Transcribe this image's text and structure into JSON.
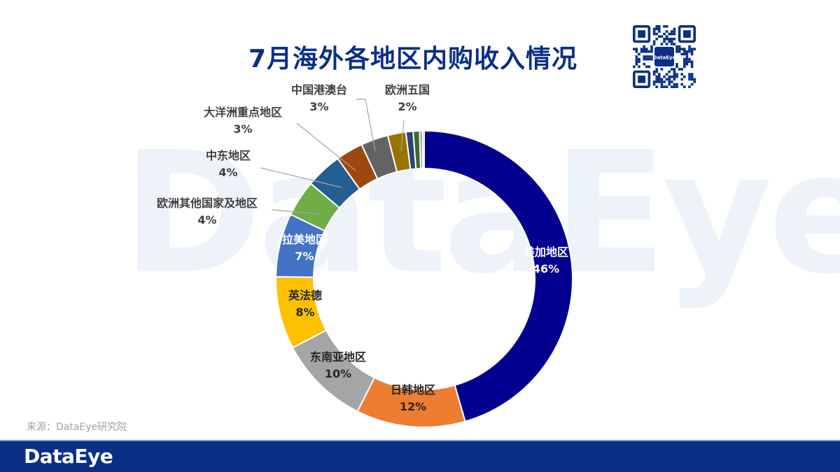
{
  "header": {
    "title": "7月海外各地区内购收入情况"
  },
  "watermark": "DataEye",
  "qr": {
    "label": "DataEye"
  },
  "source": "来源：DataEye研究院",
  "footer": {
    "brand": "DataEye"
  },
  "colors": {
    "title": "#0c2f86",
    "footer": "#0c2f86"
  },
  "chart_data": {
    "type": "pie",
    "title": "7月海外各地区内购收入情况",
    "donut": true,
    "start_angle_deg": 0,
    "direction": "clockwise",
    "slices": [
      {
        "label": "美加地区",
        "value": 46,
        "display": "46%",
        "color": "#03008f"
      },
      {
        "label": "日韩地区",
        "value": 12,
        "display": "12%",
        "color": "#ed7d31"
      },
      {
        "label": "东南亚地区",
        "value": 10,
        "display": "10%",
        "color": "#a5a5a5"
      },
      {
        "label": "英法德",
        "value": 8,
        "display": "8%",
        "color": "#ffc000"
      },
      {
        "label": "拉美地区",
        "value": 7,
        "display": "7%",
        "color": "#4472c4"
      },
      {
        "label": "欧洲其他国家及地区",
        "value": 4,
        "display": "4%",
        "color": "#70ad47"
      },
      {
        "label": "中东地区",
        "value": 4,
        "display": "4%",
        "color": "#255e91"
      },
      {
        "label": "大洋洲重点地区",
        "value": 3,
        "display": "3%",
        "color": "#9e480e"
      },
      {
        "label": "中国港澳台",
        "value": 3,
        "display": "3%",
        "color": "#636363"
      },
      {
        "label": "欧洲五国",
        "value": 2,
        "display": "2%",
        "color": "#997300"
      },
      {
        "value": 0.8,
        "color": "#264478"
      },
      {
        "value": 0.7,
        "color": "#43682b"
      },
      {
        "value": 0.3,
        "color": "#698ed0"
      },
      {
        "value": 0.2,
        "color": "#f1975a"
      }
    ]
  }
}
